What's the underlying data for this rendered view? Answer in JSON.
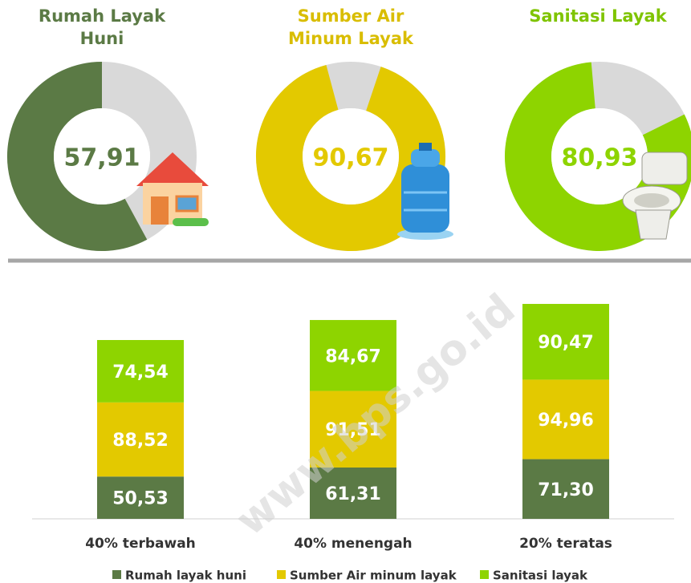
{
  "chart_data": [
    {
      "type": "donut",
      "title": "Rumah Layak Huni",
      "values": [
        57.91
      ],
      "value_labels": [
        "57,91"
      ],
      "color": "#5b7a45"
    },
    {
      "type": "donut",
      "title": "Sumber Air Minum Layak",
      "values": [
        90.67
      ],
      "value_labels": [
        "90,67"
      ],
      "color": "#e3c900"
    },
    {
      "type": "donut",
      "title": "Sanitasi Layak",
      "values": [
        80.93
      ],
      "value_labels": [
        "80,93"
      ],
      "color": "#8ed400"
    },
    {
      "type": "stacked-bar",
      "watermark": "www.bps.go.id",
      "categories": [
        "40% terbawah",
        "40% menengah",
        "20% teratas"
      ],
      "series": [
        {
          "name": "Rumah layak huni",
          "color": "#5b7a45",
          "values": [
            50.53,
            61.31,
            71.3
          ],
          "value_labels": [
            "50,53",
            "61,31",
            "71,30"
          ]
        },
        {
          "name": "Sumber Air minum layak",
          "color": "#e3c900",
          "values": [
            88.52,
            91.51,
            94.96
          ],
          "value_labels": [
            "88,52",
            "91,51",
            "94,96"
          ]
        },
        {
          "name": "Sanitasi layak",
          "color": "#8ed400",
          "values": [
            74.54,
            84.67,
            90.47
          ],
          "value_labels": [
            "74,54",
            "84,67",
            "90,47"
          ]
        }
      ]
    }
  ]
}
